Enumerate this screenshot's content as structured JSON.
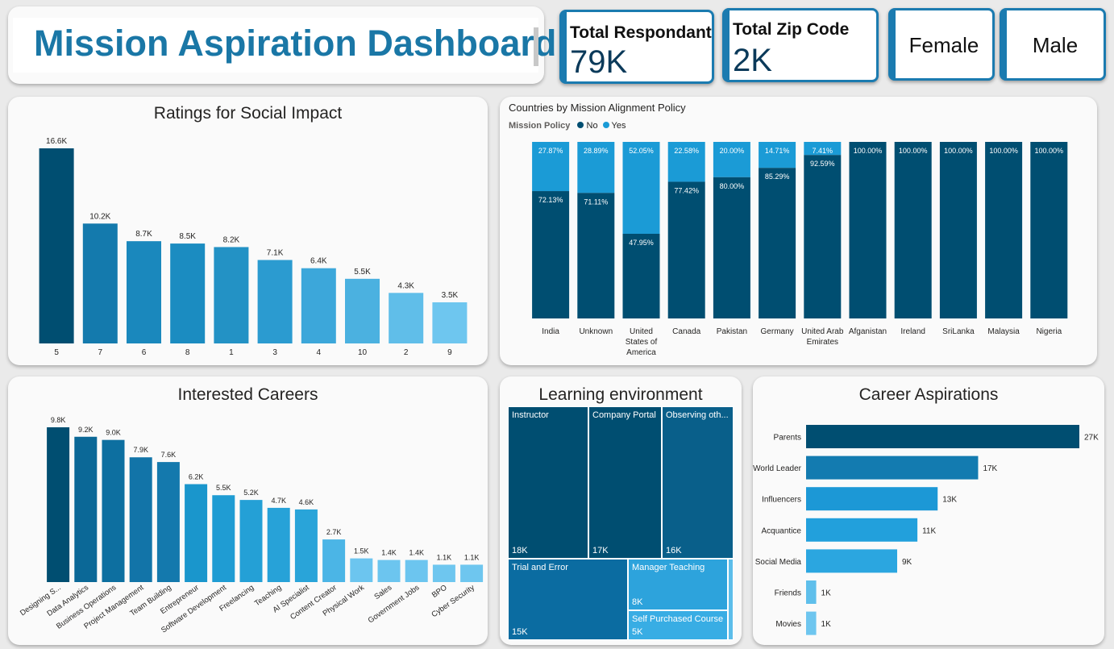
{
  "header": {
    "title": "Mission Aspiration Dashboard"
  },
  "kpis": {
    "respondents": {
      "label": "Total Respondant",
      "value": "79K"
    },
    "zip": {
      "label": "Total Zip Code",
      "value": "2K"
    },
    "female": {
      "label": "Female"
    },
    "male": {
      "label": "Male"
    }
  },
  "colors": {
    "accent": "#1b7bb0",
    "dark": "#004e71",
    "mid": "#1b9bd6",
    "light": "#6ec6ef"
  },
  "social_impact": {
    "title": "Ratings for Social Impact",
    "chart_data": {
      "type": "bar",
      "categories": [
        "5",
        "7",
        "6",
        "8",
        "1",
        "3",
        "4",
        "10",
        "2",
        "9"
      ],
      "values": [
        16.6,
        10.2,
        8.7,
        8.5,
        8.2,
        7.1,
        6.4,
        5.5,
        4.3,
        3.5
      ],
      "labels": [
        "16.6K",
        "10.2K",
        "8.7K",
        "8.5K",
        "8.2K",
        "7.1K",
        "6.4K",
        "5.5K",
        "4.3K",
        "3.5K"
      ],
      "colors": [
        "#004e71",
        "#147aad",
        "#1a88bd",
        "#1b8cc1",
        "#2392c5",
        "#2b9bd0",
        "#3ca7da",
        "#4bb1e0",
        "#60bee9",
        "#6ec6ef"
      ]
    }
  },
  "countries": {
    "title": "Countries by Mission Alignment Policy",
    "legend_title": "Mission Policy",
    "legend": [
      {
        "name": "No",
        "color": "#004e71"
      },
      {
        "name": "Yes",
        "color": "#1b9bd6"
      }
    ],
    "chart_data": {
      "type": "bar",
      "stacked": "100%",
      "categories": [
        "India",
        "Unknown",
        "United States of America",
        "Canada",
        "Pakistan",
        "Germany",
        "United Arab Emirates",
        "Afganistan",
        "Ireland",
        "SriLanka",
        "Malaysia",
        "Nigeria"
      ],
      "category_lines": [
        [
          "India"
        ],
        [
          "Unknown"
        ],
        [
          "United",
          "States of",
          "America"
        ],
        [
          "Canada"
        ],
        [
          "Pakistan"
        ],
        [
          "Germany"
        ],
        [
          "United Arab",
          "Emirates"
        ],
        [
          "Afganistan"
        ],
        [
          "Ireland"
        ],
        [
          "SriLanka"
        ],
        [
          "Malaysia"
        ],
        [
          "Nigeria"
        ]
      ],
      "series": [
        {
          "name": "No",
          "values": [
            72.13,
            71.11,
            47.95,
            77.42,
            80.0,
            85.29,
            92.59,
            100,
            100,
            100,
            100,
            100
          ],
          "labels": [
            "72.13%",
            "71.11%",
            "47.95%",
            "77.42%",
            "80.00%",
            "85.29%",
            "92.59%",
            "100.00%",
            "100.00%",
            "100.00%",
            "100.00%",
            "100.00%"
          ]
        },
        {
          "name": "Yes",
          "values": [
            27.87,
            28.89,
            52.05,
            22.58,
            20.0,
            14.71,
            7.41,
            0,
            0,
            0,
            0,
            0
          ],
          "labels": [
            "27.87%",
            "28.89%",
            "52.05%",
            "22.58%",
            "20.00%",
            "14.71%",
            "7.41%",
            "",
            "",
            "",
            "",
            ""
          ]
        }
      ]
    }
  },
  "careers": {
    "title": "Interested Careers",
    "chart_data": {
      "type": "bar",
      "categories": [
        "Designing S...",
        "Data Analytics",
        "Business Operations",
        "Project Management",
        "Team Building",
        "Entrepreneur",
        "Software Development",
        "Freelancing",
        "Teaching",
        "AI Specialist",
        "Content Creator",
        "Physical Work",
        "Sales",
        "Government Jobs",
        "BPO",
        "Cyber Security"
      ],
      "values": [
        9.8,
        9.2,
        9.0,
        7.9,
        7.6,
        6.2,
        5.5,
        5.2,
        4.7,
        4.6,
        2.7,
        1.5,
        1.4,
        1.4,
        1.1,
        1.1
      ],
      "labels": [
        "9.8K",
        "9.2K",
        "9.0K",
        "7.9K",
        "7.6K",
        "6.2K",
        "5.5K",
        "5.2K",
        "4.7K",
        "4.6K",
        "2.7K",
        "1.5K",
        "1.4K",
        "1.4K",
        "1.1K",
        "1.1K"
      ],
      "colors": [
        "#004e71",
        "#0b6897",
        "#0d6fa0",
        "#1274a8",
        "#1479ad",
        "#1a96cc",
        "#1f9cd3",
        "#24a0d6",
        "#27a2d8",
        "#29a4d9",
        "#4bb5e6",
        "#6cc5ef",
        "#6cc5ef",
        "#6cc5ef",
        "#6ec6ef",
        "#6ec6ef"
      ]
    }
  },
  "learning": {
    "title": "Learning environment",
    "chart_data": {
      "type": "treemap",
      "items": [
        {
          "label": "Instructor",
          "value": "18K",
          "color": "#004e71"
        },
        {
          "label": "Company Portal",
          "value": "17K",
          "color": "#004e71"
        },
        {
          "label": "Observing oth...",
          "value": "16K",
          "color": "#095f8a"
        },
        {
          "label": "Trial and Error",
          "value": "15K",
          "color": "#0b6ca1"
        },
        {
          "label": "Manager Teaching",
          "value": "8K",
          "color": "#2da3dc"
        },
        {
          "label": "Self Purchased Course",
          "value": "5K",
          "color": "#38ade4"
        }
      ]
    }
  },
  "aspirations": {
    "title": "Career Aspirations",
    "chart_data": {
      "type": "bar",
      "orientation": "horizontal",
      "categories": [
        "Parents",
        "World Leader",
        "Influencers",
        "Acquantice",
        "Social Media",
        "Friends",
        "Movies"
      ],
      "values": [
        27,
        17,
        13,
        11,
        9,
        1,
        1
      ],
      "labels": [
        "27K",
        "17K",
        "13K",
        "11K",
        "9K",
        "1K",
        "1K"
      ],
      "colors": [
        "#004e71",
        "#137bb0",
        "#1c98d6",
        "#22a0dc",
        "#2ba6e0",
        "#5fbfeb",
        "#6ec6ef"
      ]
    }
  }
}
